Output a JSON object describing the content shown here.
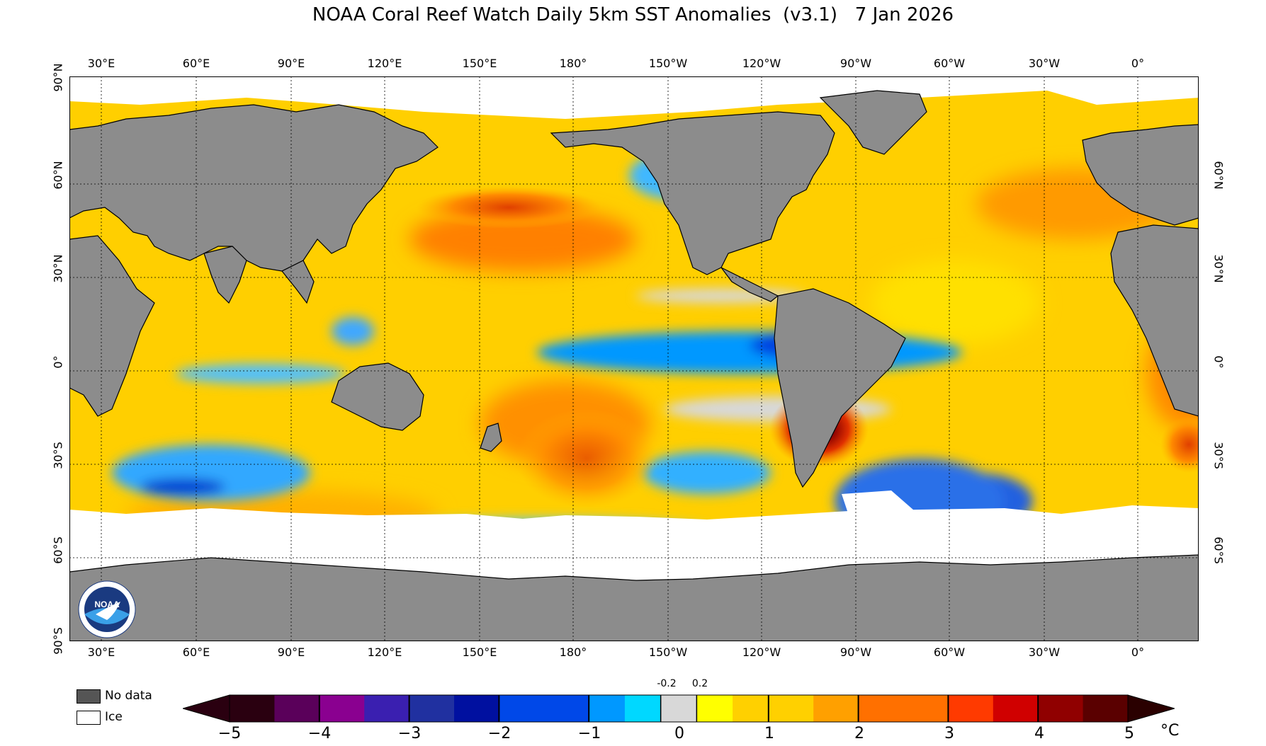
{
  "title": "NOAA Coral Reef Watch Daily 5km SST Anomalies  (v3.1)   7 Jan 2026",
  "lon_labels": [
    "30°E",
    "60°E",
    "90°E",
    "120°E",
    "150°E",
    "180°",
    "150°W",
    "120°W",
    "90°W",
    "60°W",
    "30°W",
    "0°"
  ],
  "lat_labels_left": [
    "90°N",
    "60°N",
    "30°N",
    "0°",
    "30°S",
    "60°S",
    "90°S"
  ],
  "lat_labels_right": [
    "60°N",
    "30°N",
    "0°",
    "30°S",
    "60°S"
  ],
  "legend": {
    "no_data": "No data",
    "ice": "Ice"
  },
  "colorbar": {
    "ticks": [
      "−5",
      "−4",
      "−3",
      "−2",
      "−1",
      "0",
      "1",
      "2",
      "3",
      "4",
      "5"
    ],
    "small_ticks": [
      "-0.2",
      "0.2"
    ],
    "unit": "°C",
    "colors": [
      "#2a0010",
      "#5a005a",
      "#8a0090",
      "#3a1fb0",
      "#2030a0",
      "#0010a0",
      "#0048e8",
      "#0098ff",
      "#00d8ff",
      "#d8d8d8",
      "#ffff00",
      "#ffd000",
      "#ffa000",
      "#ff7000",
      "#ff3a00",
      "#d00000",
      "#900000",
      "#5a0000",
      "#2a0000"
    ],
    "no_data_color": "#555555",
    "ice_color": "#ffffff",
    "land_color": "#8c8c8c"
  },
  "logo_text": "NOAA"
}
